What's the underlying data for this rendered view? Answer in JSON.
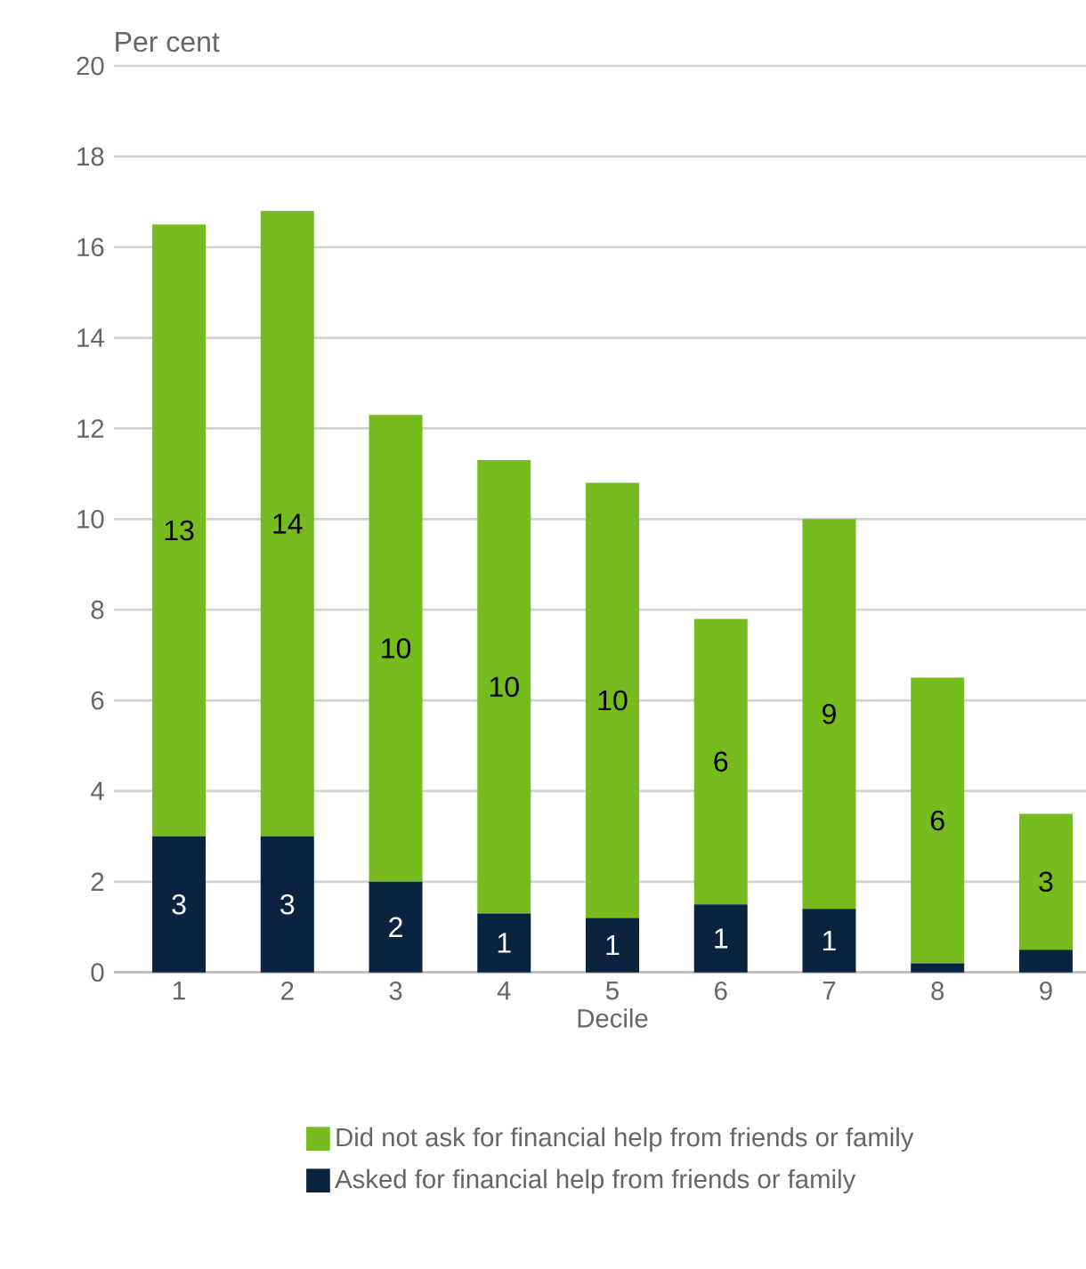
{
  "chart_data": {
    "type": "bar",
    "stacked": true,
    "ylabel": "Per cent",
    "xlabel": "Decile",
    "categories": [
      "1",
      "2",
      "3",
      "4",
      "5",
      "6",
      "7",
      "8",
      "9"
    ],
    "series": [
      {
        "name": "Asked for financial help from friends or family",
        "color": "#0c2340",
        "values": [
          3.0,
          3.0,
          2.0,
          1.3,
          1.2,
          1.5,
          1.4,
          0.2,
          0.5
        ],
        "value_labels": [
          "3",
          "3",
          "2",
          "1",
          "1",
          "1",
          "1",
          null,
          null
        ]
      },
      {
        "name": "Did not ask for financial help from friends or family",
        "color": "#77bc1f",
        "values": [
          13.5,
          13.8,
          10.3,
          10.0,
          9.6,
          6.3,
          8.6,
          6.3,
          3.0
        ],
        "value_labels": [
          "13",
          "14",
          "10",
          "10",
          "10",
          "6",
          "9",
          "6",
          "3"
        ]
      }
    ],
    "ylim": [
      0,
      20
    ],
    "yticks": [
      0,
      2,
      4,
      6,
      8,
      10,
      12,
      14,
      16,
      18,
      20
    ],
    "grid": "y",
    "legend": "bottom"
  }
}
